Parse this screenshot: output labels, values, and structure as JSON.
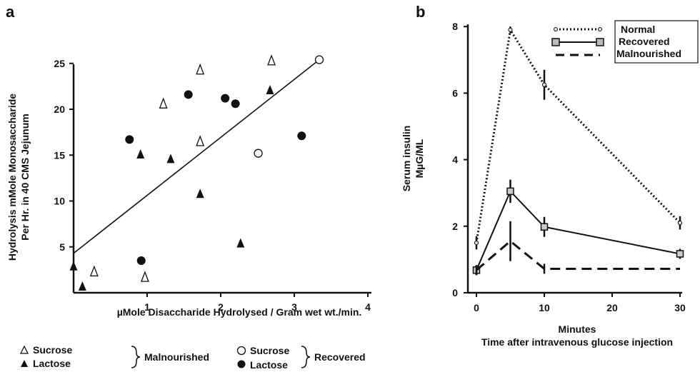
{
  "chart_data": [
    {
      "panel_label": "a",
      "type": "scatter",
      "xlabel": "µMole Disaccharide Hydrolysed / Gram wet wt./min.",
      "ylabel": "Hydrolysis mMole Monosaccharide",
      "ylabel2": "Per Hr. in 40 CMS Jejunum",
      "xlim": [
        0,
        4
      ],
      "ylim": [
        0,
        26.5
      ],
      "xticks": [
        "1",
        "2",
        "3",
        "4"
      ],
      "yticks": [
        "5",
        "10",
        "15",
        "20",
        "25"
      ],
      "series": [
        {
          "marker": "open-triangle",
          "points": [
            [
              0.28,
              2.3
            ],
            [
              0.97,
              1.7
            ],
            [
              1.22,
              20.6
            ],
            [
              1.72,
              24.3
            ],
            [
              1.72,
              16.5
            ],
            [
              2.69,
              25.3
            ]
          ]
        },
        {
          "marker": "filled-triangle",
          "points": [
            [
              0.0,
              2.9
            ],
            [
              0.12,
              0.7
            ],
            [
              0.91,
              15.1
            ],
            [
              1.32,
              14.6
            ],
            [
              1.72,
              10.8
            ],
            [
              2.27,
              5.4
            ],
            [
              2.67,
              22.1
            ]
          ]
        },
        {
          "marker": "open-circle",
          "points": [
            [
              2.51,
              15.2
            ],
            [
              3.34,
              25.4
            ]
          ]
        },
        {
          "marker": "filled-circle",
          "points": [
            [
              0.76,
              16.7
            ],
            [
              0.92,
              3.5
            ],
            [
              1.56,
              21.6
            ],
            [
              2.06,
              21.2
            ],
            [
              2.2,
              20.6
            ],
            [
              3.1,
              17.1
            ]
          ]
        }
      ],
      "fit_line": {
        "x": [
          0,
          3.34
        ],
        "y": [
          4.3,
          25.4
        ]
      },
      "legend": {
        "left": {
          "labels": [
            "Sucrose",
            "Lactose"
          ],
          "group": "Malnourished"
        },
        "right": {
          "labels": [
            "Sucrose",
            "Lactose"
          ],
          "group": "Recovered"
        }
      }
    },
    {
      "panel_label": "b",
      "type": "line",
      "xlabel": "Minutes",
      "xlabel2": "Time after intravenous glucose injection",
      "ylabel": "Serum insulin",
      "ylabel2": "MµG/ML",
      "xlim": [
        0,
        30
      ],
      "ylim": [
        0,
        8
      ],
      "xticks": [
        "0",
        "10",
        "20",
        "30"
      ],
      "yticks": [
        "0",
        "2",
        "4",
        "6",
        "8"
      ],
      "x": [
        0,
        5,
        10,
        30
      ],
      "series": [
        {
          "name": "Normal",
          "style": "dotted",
          "marker": "small-circle",
          "values": [
            1.5,
            7.9,
            6.25,
            2.1
          ],
          "errors": [
            0.2,
            0.1,
            0.45,
            0.2
          ]
        },
        {
          "name": "Recovered",
          "style": "solid",
          "marker": "open-square",
          "values": [
            0.68,
            3.05,
            1.98,
            1.17
          ],
          "errors": [
            0.15,
            0.35,
            0.3,
            0.15
          ]
        },
        {
          "name": "Malnourished",
          "style": "dashed",
          "marker": "none",
          "values": [
            0.68,
            1.55,
            0.72,
            0.72
          ],
          "errors": [
            0.15,
            0.6,
            0.15,
            0.0
          ]
        }
      ]
    }
  ]
}
